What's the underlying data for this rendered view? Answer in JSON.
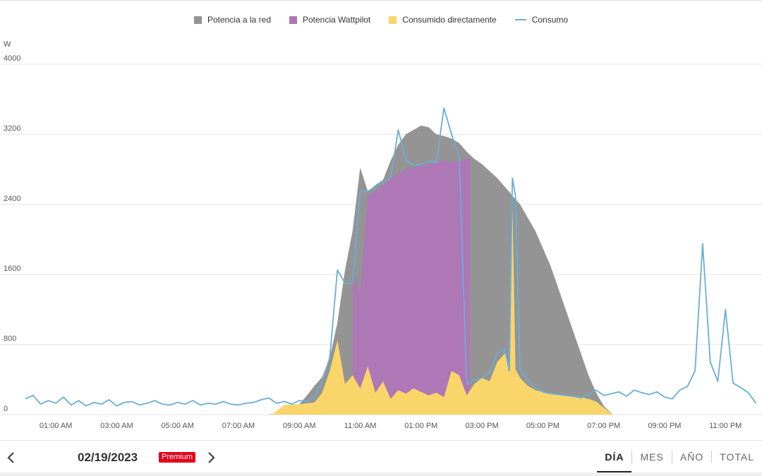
{
  "chart_data": {
    "type": "area",
    "ylabel": "W",
    "ylim": [
      0,
      4000
    ],
    "xlim": [
      0,
      24.2
    ],
    "y_ticks": [
      "0",
      "800",
      "1600",
      "2400",
      "3200",
      "4000"
    ],
    "y_tick_values": [
      0,
      800,
      1600,
      2400,
      3200,
      4000
    ],
    "x_ticks": [
      "01:00 AM",
      "03:00 AM",
      "05:00 AM",
      "07:00 AM",
      "09:00 AM",
      "11:00 AM",
      "01:00 PM",
      "03:00 PM",
      "05:00 PM",
      "07:00 PM",
      "09:00 PM",
      "11:00 PM"
    ],
    "x_tick_hours": [
      1,
      3,
      5,
      7,
      9,
      11,
      13,
      15,
      17,
      19,
      21,
      23
    ],
    "grid": true,
    "legend_position": "top-center",
    "series": [
      {
        "name": "Potencia a la red",
        "kind": "area",
        "color": "#949494",
        "x": [
          8.0,
          8.5,
          9.0,
          9.25,
          9.5,
          9.75,
          10.0,
          10.25,
          10.5,
          10.75,
          11.0,
          11.25,
          11.5,
          11.75,
          12.0,
          12.25,
          12.5,
          12.75,
          13.0,
          13.25,
          13.5,
          13.75,
          14.0,
          14.25,
          14.5,
          14.75,
          15.0,
          15.25,
          15.5,
          15.75,
          16.0,
          16.25,
          16.5,
          16.75,
          17.0,
          17.25,
          17.5,
          17.75,
          18.0,
          18.25,
          18.5,
          18.75,
          19.0,
          19.3
        ],
        "values": [
          0,
          30,
          120,
          220,
          330,
          430,
          650,
          1050,
          1650,
          2100,
          2820,
          2550,
          2620,
          2680,
          2900,
          3080,
          3200,
          3250,
          3300,
          3280,
          3200,
          3180,
          3150,
          3100,
          3000,
          2920,
          2860,
          2780,
          2700,
          2600,
          2500,
          2400,
          2250,
          2100,
          1900,
          1700,
          1450,
          1200,
          950,
          700,
          450,
          250,
          100,
          0
        ]
      },
      {
        "name": "Potencia Wattpilot",
        "kind": "area",
        "color": "#ae77b5",
        "x": [
          10.75,
          10.76,
          11.0,
          11.25,
          11.5,
          11.75,
          12.0,
          12.25,
          12.5,
          12.75,
          13.0,
          13.25,
          13.5,
          13.75,
          14.0,
          14.25,
          14.5,
          14.6,
          14.61
        ],
        "values": [
          0,
          1600,
          1400,
          2500,
          2550,
          2620,
          2700,
          2750,
          2800,
          2820,
          2850,
          2860,
          2880,
          2900,
          2880,
          2900,
          2920,
          2950,
          0
        ]
      },
      {
        "name": "Consumido directamente",
        "kind": "area",
        "color": "#f9d56a",
        "x": [
          8.1,
          8.5,
          9.0,
          9.5,
          9.75,
          10.0,
          10.25,
          10.5,
          10.75,
          11.0,
          11.25,
          11.5,
          11.75,
          12.0,
          12.25,
          12.5,
          12.75,
          13.0,
          13.25,
          13.5,
          13.75,
          14.0,
          14.25,
          14.5,
          14.75,
          15.0,
          15.25,
          15.5,
          15.75,
          15.9,
          16.0,
          16.1,
          16.25,
          16.5,
          16.75,
          17.0,
          17.25,
          17.5,
          17.75,
          18.0,
          18.25,
          18.5,
          18.75,
          19.0,
          19.3
        ],
        "values": [
          0,
          110,
          120,
          140,
          250,
          500,
          850,
          350,
          450,
          300,
          550,
          250,
          380,
          180,
          280,
          240,
          300,
          260,
          220,
          250,
          200,
          500,
          450,
          220,
          350,
          420,
          380,
          600,
          700,
          500,
          2450,
          520,
          420,
          330,
          280,
          260,
          240,
          230,
          220,
          210,
          200,
          180,
          150,
          80,
          0
        ]
      },
      {
        "name": "Consumo",
        "kind": "line",
        "color": "#6aaed6",
        "x": [
          0.0,
          0.25,
          0.5,
          0.75,
          1.0,
          1.25,
          1.5,
          1.75,
          2.0,
          2.25,
          2.5,
          2.75,
          3.0,
          3.25,
          3.5,
          3.75,
          4.0,
          4.25,
          4.5,
          4.75,
          5.0,
          5.25,
          5.5,
          5.75,
          6.0,
          6.25,
          6.5,
          6.75,
          7.0,
          7.25,
          7.5,
          7.75,
          8.0,
          8.25,
          8.5,
          8.75,
          9.0,
          9.25,
          9.5,
          9.75,
          10.0,
          10.25,
          10.5,
          10.75,
          11.0,
          11.25,
          11.5,
          11.75,
          12.0,
          12.25,
          12.5,
          12.75,
          13.0,
          13.25,
          13.5,
          13.75,
          14.0,
          14.25,
          14.5,
          14.75,
          15.0,
          15.25,
          15.5,
          15.75,
          15.9,
          16.0,
          16.1,
          16.25,
          16.5,
          16.75,
          17.0,
          17.25,
          17.5,
          17.75,
          18.0,
          18.25,
          18.5,
          18.75,
          19.0,
          19.25,
          19.5,
          19.75,
          20.0,
          20.25,
          20.5,
          20.75,
          21.0,
          21.25,
          21.5,
          21.75,
          22.0,
          22.25,
          22.5,
          22.75,
          23.0,
          23.25,
          23.5,
          23.75,
          24.0
        ],
        "values": [
          180,
          220,
          120,
          160,
          130,
          200,
          110,
          160,
          100,
          140,
          120,
          170,
          100,
          140,
          150,
          110,
          130,
          160,
          120,
          110,
          140,
          120,
          160,
          110,
          130,
          120,
          150,
          120,
          110,
          130,
          140,
          170,
          190,
          130,
          150,
          120,
          160,
          150,
          200,
          380,
          650,
          1650,
          1500,
          1500,
          2550,
          2550,
          2600,
          2650,
          2700,
          3250,
          2900,
          2850,
          2850,
          2900,
          2880,
          3500,
          3200,
          2950,
          350,
          400,
          420,
          480,
          700,
          750,
          500,
          2700,
          2500,
          520,
          400,
          300,
          260,
          240,
          230,
          220,
          210,
          190,
          230,
          280,
          220,
          240,
          260,
          210,
          280,
          250,
          230,
          260,
          200,
          180,
          280,
          320,
          500,
          1950,
          600,
          380,
          1200,
          360,
          310,
          250,
          130
        ]
      }
    ]
  },
  "legend": [
    {
      "label": "Potencia a la red",
      "color": "#949494",
      "shape": "square"
    },
    {
      "label": "Potencia Wattpilot",
      "color": "#ae77b5",
      "shape": "square"
    },
    {
      "label": "Consumido directamente",
      "color": "#f9d56a",
      "shape": "square"
    },
    {
      "label": "Consumo",
      "color": "#6aaed6",
      "shape": "line"
    }
  ],
  "footer": {
    "prev_icon": "chevron-left-icon",
    "next_icon": "chevron-right-icon",
    "date": "02/19/2023",
    "premium_badge": "Premium",
    "tabs": [
      {
        "label": "DÍA",
        "active": true
      },
      {
        "label": "MES",
        "active": false
      },
      {
        "label": "AÑO",
        "active": false
      },
      {
        "label": "TOTAL",
        "active": false
      }
    ]
  }
}
